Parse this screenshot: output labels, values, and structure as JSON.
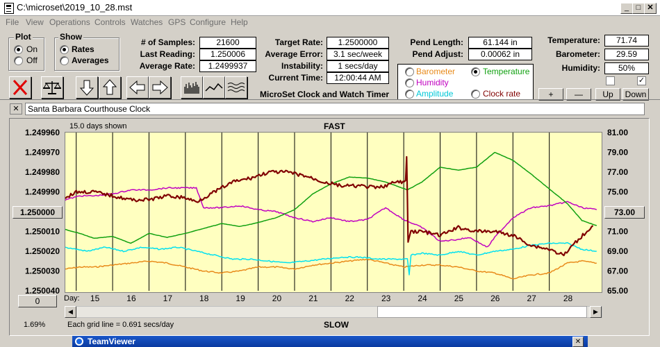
{
  "window": {
    "title": "C:\\microset\\2019_10_28.mst"
  },
  "menu": [
    "File",
    "View",
    "Operations",
    "Controls",
    "Watches",
    "GPS",
    "Configure",
    "Help"
  ],
  "plot_group": {
    "title": "Plot",
    "options": [
      "On",
      "Off"
    ],
    "selected": "On"
  },
  "show_group": {
    "title": "Show",
    "options": [
      "Rates",
      "Averages"
    ],
    "selected": "Rates"
  },
  "stats": {
    "samples_label": "# of Samples:",
    "samples": "21600",
    "last_reading_label": "Last Reading:",
    "last_reading": "1.250006",
    "avg_rate_label": "Average Rate:",
    "avg_rate": "1.2499937",
    "target_rate_label": "Target Rate:",
    "target_rate": "1.2500000",
    "avg_error_label": "Average Error:",
    "avg_error": "3.1 sec/week",
    "instability_label": "Instability:",
    "instability": "1 secs/day",
    "current_time_label": "Current Time:",
    "current_time": "12:00:44 AM",
    "pend_length_label": "Pend Length:",
    "pend_length": "61.144 in",
    "pend_adjust_label": "Pend Adjust:",
    "pend_adjust": "0.00062 in",
    "temperature_label": "Temperature:",
    "temperature": "71.74",
    "barometer_label": "Barometer:",
    "barometer": "29.59",
    "humidity_label": "Humidity:",
    "humidity": "50%"
  },
  "app_caption": "MicroSet Clock and Watch Timer",
  "sensor_options": [
    {
      "label": "Barometer",
      "color": "#e88a1a",
      "selected": false
    },
    {
      "label": "Temperature",
      "color": "#10a010",
      "selected": true
    },
    {
      "label": "Humidity",
      "color": "#c000c0",
      "selected": false
    },
    {
      "label": "Clock rate",
      "color": "#800000",
      "selected": false
    },
    {
      "label": "Amplitude",
      "color": "#00d0e0",
      "selected": false
    }
  ],
  "pm_buttons": [
    "+",
    "—",
    "Up",
    "Down"
  ],
  "clock_name": "Santa Barbara Courthouse Clock",
  "chart_data": {
    "type": "line",
    "header_left": "15.0 days shown",
    "title_top": "FAST",
    "title_bottom": "SLOW",
    "x_label": "Day:",
    "x_ticks": [
      "15",
      "16",
      "17",
      "18",
      "19",
      "20",
      "21",
      "22",
      "23",
      "24",
      "25",
      "26",
      "27",
      "28"
    ],
    "xlim": [
      14.2,
      28.9
    ],
    "left_axis": {
      "ticks": [
        "1.249960",
        "1.249970",
        "1.249980",
        "1.249990",
        "1.250000",
        "1.250010",
        "1.250020",
        "1.250030",
        "1.250040"
      ],
      "ylim": [
        1.24996,
        1.25004
      ],
      "inverted": true
    },
    "right_axis": {
      "ticks": [
        "81.00",
        "79.00",
        "77.00",
        "75.00",
        "73.00",
        "71.00",
        "69.00",
        "67.00",
        "65.00"
      ],
      "ylim": [
        65,
        81
      ]
    },
    "left_center_button": "1.250000",
    "right_center_button": "73.00",
    "bottom_left_button": "0",
    "grid_note": "Each grid line = 0.691 secs/day",
    "corner_pct": "1.69%",
    "series": [
      {
        "name": "Clock rate",
        "color": "#800000",
        "axis": "left",
        "width": 2.2,
        "x": [
          14.2,
          14.5,
          15.0,
          15.5,
          16.0,
          16.5,
          17.0,
          17.5,
          17.8,
          18.3,
          18.8,
          19.3,
          19.8,
          20.3,
          20.8,
          21.3,
          21.8,
          22.3,
          22.8,
          23.3,
          23.55,
          23.58,
          23.62,
          23.7,
          24.0,
          24.5,
          25.0,
          25.5,
          26.0,
          26.5,
          27.0,
          27.5,
          27.9,
          28.3,
          28.7
        ],
        "y": [
          1.249993,
          1.24999,
          1.24999,
          1.249992,
          1.249994,
          1.249994,
          1.249992,
          1.249993,
          1.249995,
          1.24999,
          1.249985,
          1.249983,
          1.24998,
          1.24998,
          1.249982,
          1.249985,
          1.249987,
          1.249987,
          1.249988,
          1.249985,
          1.249985,
          1.249972,
          1.250015,
          1.25001,
          1.25001,
          1.250012,
          1.250008,
          1.25001,
          1.25001,
          1.250012,
          1.250017,
          1.250019,
          1.250022,
          1.250014,
          1.250007
        ]
      },
      {
        "name": "Temperature",
        "color": "#10a010",
        "axis": "right",
        "width": 1.5,
        "x": [
          14.2,
          14.6,
          15.0,
          15.5,
          16.0,
          16.5,
          17.0,
          17.5,
          18.0,
          18.5,
          19.0,
          19.5,
          20.0,
          20.5,
          21.0,
          21.5,
          22.0,
          22.5,
          23.0,
          23.6,
          24.0,
          24.5,
          25.0,
          25.5,
          26.0,
          26.5,
          27.0,
          27.5,
          28.0,
          28.4,
          28.8
        ],
        "y": [
          71.2,
          70.8,
          70.3,
          70.5,
          69.8,
          70.8,
          70.4,
          70.8,
          71.3,
          71.8,
          71.5,
          71.9,
          72.4,
          73.2,
          74.8,
          75.8,
          76.5,
          76.4,
          76.0,
          75.2,
          76.0,
          77.5,
          77.2,
          77.5,
          79.0,
          78.2,
          76.8,
          75.3,
          73.8,
          72.1,
          71.6
        ]
      },
      {
        "name": "Humidity",
        "color": "#c000c0",
        "axis": "left",
        "width": 1.5,
        "x": [
          14.2,
          14.6,
          15.0,
          15.5,
          16.0,
          16.5,
          17.0,
          17.5,
          17.8,
          18.0,
          18.5,
          19.0,
          19.5,
          20.0,
          20.5,
          21.0,
          21.5,
          22.0,
          22.5,
          23.0,
          23.5,
          24.0,
          24.5,
          25.0,
          25.3,
          25.8,
          26.0,
          26.5,
          27.0,
          27.5,
          28.0,
          28.4,
          28.8
        ],
        "y": [
          1.249994,
          1.249992,
          1.249992,
          1.249991,
          1.249989,
          1.249989,
          1.249988,
          1.249988,
          1.249988,
          1.249998,
          1.249998,
          1.249997,
          1.249999,
          1.25,
          1.250003,
          1.250005,
          1.250003,
          1.250005,
          1.250004,
          1.249998,
          1.250004,
          1.250008,
          1.250015,
          1.250014,
          1.250013,
          1.250018,
          1.250013,
          1.250003,
          1.249998,
          1.249997,
          1.249995,
          1.249998,
          1.249999
        ]
      },
      {
        "name": "Amplitude",
        "color": "#00e0f0",
        "axis": "left",
        "width": 1.5,
        "x": [
          14.2,
          14.8,
          15.3,
          15.8,
          16.3,
          16.8,
          17.3,
          17.8,
          18.3,
          18.8,
          19.3,
          19.8,
          20.3,
          20.8,
          21.3,
          21.8,
          22.3,
          22.8,
          23.2,
          23.6,
          23.65,
          23.7,
          24.0,
          24.5,
          25.0,
          25.5,
          26.0,
          26.5,
          27.0,
          27.5,
          28.0,
          28.4,
          28.8
        ],
        "y": [
          1.250018,
          1.25002,
          1.250018,
          1.25002,
          1.250018,
          1.250019,
          1.250018,
          1.25002,
          1.250022,
          1.250024,
          1.250024,
          1.250025,
          1.250026,
          1.250025,
          1.250024,
          1.250023,
          1.250023,
          1.250024,
          1.250024,
          1.250024,
          1.250032,
          1.250022,
          1.250021,
          1.250022,
          1.25002,
          1.250022,
          1.25002,
          1.250019,
          1.250017,
          1.250016,
          1.250016,
          1.250019,
          1.25002
        ]
      },
      {
        "name": "Barometer",
        "color": "#e88a1a",
        "axis": "left",
        "width": 1.5,
        "x": [
          14.2,
          14.6,
          15.0,
          15.5,
          16.0,
          16.5,
          17.0,
          17.5,
          18.0,
          18.5,
          19.0,
          19.5,
          20.0,
          20.5,
          21.0,
          21.5,
          22.0,
          22.5,
          23.0,
          23.5,
          24.0,
          24.5,
          25.0,
          25.5,
          26.0,
          26.5,
          27.0,
          27.5,
          28.0,
          28.4,
          28.8
        ],
        "y": [
          1.250029,
          1.250028,
          1.250028,
          1.250027,
          1.250026,
          1.250025,
          1.250026,
          1.250028,
          1.25003,
          1.250031,
          1.25003,
          1.250028,
          1.250028,
          1.250029,
          1.250027,
          1.250026,
          1.250025,
          1.250024,
          1.250026,
          1.250028,
          1.250027,
          1.250027,
          1.250028,
          1.25003,
          1.250031,
          1.250034,
          1.250032,
          1.250031,
          1.250026,
          1.250025,
          1.250026
        ]
      }
    ]
  },
  "taskbar": {
    "title": "TeamViewer"
  }
}
